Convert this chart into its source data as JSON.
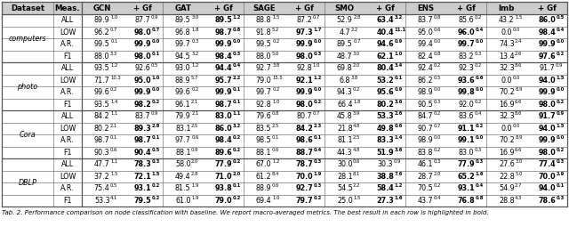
{
  "columns": [
    "Dataset",
    "Meas.",
    "GCN",
    "+ Gf",
    "GAT",
    "+ Gf",
    "SAGE",
    "+ Gf",
    "SMO",
    "+ Gf",
    "ENS",
    "+ Gf",
    "Imb",
    "+ Gf"
  ],
  "datasets": [
    "computers",
    "photo",
    "Cora",
    "DBLP"
  ],
  "measures": [
    "ALL",
    "LOW",
    "A.R.",
    "F1"
  ],
  "data": {
    "computers": {
      "ALL": [
        [
          "89.9",
          "1.0"
        ],
        [
          "87.7",
          "0.9"
        ],
        [
          "89.5",
          "3.0"
        ],
        [
          "89.5",
          "1.2"
        ],
        [
          "88.8",
          "1.5"
        ],
        [
          "87.2",
          "0.7"
        ],
        [
          "52.9",
          "2.8"
        ],
        [
          "63.4",
          "3.2"
        ],
        [
          "83.7",
          "0.8"
        ],
        [
          "85.6",
          "0.2"
        ],
        [
          "43.2",
          "1.5"
        ],
        [
          "86.0",
          "0.5"
        ]
      ],
      "LOW": [
        [
          "96.2",
          "0.7"
        ],
        [
          "98.0",
          "0.7"
        ],
        [
          "96.8",
          "1.8"
        ],
        [
          "98.7",
          "0.8"
        ],
        [
          "91.8",
          "5.2"
        ],
        [
          "97.3",
          "1.7"
        ],
        [
          "4.7",
          "2.2"
        ],
        [
          "40.4",
          "11.1"
        ],
        [
          "95.0",
          "0.6"
        ],
        [
          "96.0",
          "0.4"
        ],
        [
          "0.0",
          "0.0"
        ],
        [
          "98.4",
          "0.4"
        ]
      ],
      "A.R.": [
        [
          "99.5",
          "0.1"
        ],
        [
          "99.9",
          "0.0"
        ],
        [
          "99.7",
          "0.3"
        ],
        [
          "99.9",
          "0.0"
        ],
        [
          "99.5",
          "0.2"
        ],
        [
          "99.9",
          "0.0"
        ],
        [
          "89.5",
          "0.7"
        ],
        [
          "94.6",
          "0.9"
        ],
        [
          "99.4",
          "0.0"
        ],
        [
          "99.7",
          "0.0"
        ],
        [
          "74.3",
          "2.4"
        ],
        [
          "99.9",
          "0.0"
        ]
      ],
      "F1": [
        [
          "88.0",
          "3.3"
        ],
        [
          "98.0",
          "0.1"
        ],
        [
          "94.5",
          "3.2"
        ],
        [
          "98.4",
          "0.3"
        ],
        [
          "88.0",
          "5.0"
        ],
        [
          "98.0",
          "0.3"
        ],
        [
          "48.7",
          "3.0"
        ],
        [
          "62.1",
          "1.0"
        ],
        [
          "82.4",
          "0.8"
        ],
        [
          "83.2",
          "0.3"
        ],
        [
          "13.4",
          "2.6"
        ],
        [
          "97.6",
          "0.2"
        ]
      ]
    },
    "photo": {
      "ALL": [
        [
          "93.5",
          "1.2"
        ],
        [
          "92.6",
          "0.5"
        ],
        [
          "93.0",
          "1.2"
        ],
        [
          "94.4",
          "0.4"
        ],
        [
          "92.7",
          "3.8"
        ],
        [
          "92.8",
          "1.0"
        ],
        [
          "69.8",
          "2.0"
        ],
        [
          "80.4",
          "3.4"
        ],
        [
          "92.4",
          "0.2"
        ],
        [
          "92.3",
          "0.2"
        ],
        [
          "32.3",
          "8.6"
        ],
        [
          "91.7",
          "0.9"
        ]
      ],
      "LOW": [
        [
          "71.7",
          "10.3"
        ],
        [
          "95.0",
          "1.0"
        ],
        [
          "88.9",
          "5.7"
        ],
        [
          "95.7",
          "2.2"
        ],
        [
          "79.0",
          "15.5"
        ],
        [
          "92.1",
          "1.2"
        ],
        [
          "6.8",
          "3.8"
        ],
        [
          "53.2",
          "0.1"
        ],
        [
          "86.2",
          "0.5"
        ],
        [
          "93.6",
          "0.6"
        ],
        [
          "0.0",
          "0.0"
        ],
        [
          "94.0",
          "1.5"
        ]
      ],
      "A.R.": [
        [
          "99.6",
          "0.2"
        ],
        [
          "99.9",
          "0.0"
        ],
        [
          "99.6",
          "0.2"
        ],
        [
          "99.9",
          "0.1"
        ],
        [
          "99.7",
          "0.2"
        ],
        [
          "99.9",
          "0.0"
        ],
        [
          "94.3",
          "0.2"
        ],
        [
          "95.6",
          "0.9"
        ],
        [
          "98.9",
          "0.0"
        ],
        [
          "99.8",
          "0.0"
        ],
        [
          "70.2",
          "8.9"
        ],
        [
          "99.9",
          "0.0"
        ]
      ],
      "F1": [
        [
          "93.5",
          "1.4"
        ],
        [
          "98.2",
          "0.2"
        ],
        [
          "96.1",
          "2.1"
        ],
        [
          "98.7",
          "0.1"
        ],
        [
          "92.8",
          "1.0"
        ],
        [
          "98.0",
          "0.2"
        ],
        [
          "66.4",
          "1.8"
        ],
        [
          "80.2",
          "3.6"
        ],
        [
          "90.5",
          "0.3"
        ],
        [
          "92.0",
          "0.2"
        ],
        [
          "16.9",
          "6.6"
        ],
        [
          "98.0",
          "0.2"
        ]
      ]
    },
    "Cora": {
      "ALL": [
        [
          "84.2",
          "1.1"
        ],
        [
          "83.7",
          "0.9"
        ],
        [
          "79.9",
          "2.1"
        ],
        [
          "83.0",
          "1.1"
        ],
        [
          "79.6",
          "0.8"
        ],
        [
          "80.7",
          "0.7"
        ],
        [
          "45.8",
          "3.9"
        ],
        [
          "53.3",
          "2.6"
        ],
        [
          "84.7",
          "0.2"
        ],
        [
          "83.6",
          "0.4"
        ],
        [
          "32.3",
          "8.6"
        ],
        [
          "91.7",
          "0.9"
        ]
      ],
      "LOW": [
        [
          "80.2",
          "2.1"
        ],
        [
          "89.3",
          "2.8"
        ],
        [
          "83.1",
          "2.5"
        ],
        [
          "86.0",
          "3.2"
        ],
        [
          "83.5",
          "2.5"
        ],
        [
          "84.2",
          "2.3"
        ],
        [
          "21.8",
          "4.8"
        ],
        [
          "49.8",
          "0.6"
        ],
        [
          "90.7",
          "0.7"
        ],
        [
          "91.1",
          "0.2"
        ],
        [
          "0.0",
          "0.0"
        ],
        [
          "94.0",
          "1.5"
        ]
      ],
      "A.R.": [
        [
          "98.7",
          "0.1"
        ],
        [
          "98.7",
          "0.1"
        ],
        [
          "97.7",
          "0.6"
        ],
        [
          "98.4",
          "0.2"
        ],
        [
          "98.5",
          "0.1"
        ],
        [
          "98.6",
          "0.1"
        ],
        [
          "81.1",
          "2.5"
        ],
        [
          "83.3",
          "1.4"
        ],
        [
          "98.9",
          "0.0"
        ],
        [
          "99.1",
          "0.0"
        ],
        [
          "70.2",
          "8.9"
        ],
        [
          "99.9",
          "0.0"
        ]
      ],
      "F1": [
        [
          "90.3",
          "0.6"
        ],
        [
          "90.4",
          "0.5"
        ],
        [
          "88.1",
          "0.9"
        ],
        [
          "89.6",
          "0.2"
        ],
        [
          "88.1",
          "0.6"
        ],
        [
          "88.7",
          "0.4"
        ],
        [
          "44.3",
          "4.8"
        ],
        [
          "51.9",
          "3.6"
        ],
        [
          "83.8",
          "0.2"
        ],
        [
          "83.0",
          "0.3"
        ],
        [
          "16.9",
          "6.6"
        ],
        [
          "98.0",
          "0.2"
        ]
      ]
    },
    "DBLP": {
      "ALL": [
        [
          "47.7",
          "1.1"
        ],
        [
          "78.3",
          "0.3"
        ],
        [
          "58.0",
          "2.0"
        ],
        [
          "77.9",
          "0.2"
        ],
        [
          "67.0",
          "1.2"
        ],
        [
          "78.7",
          "0.3"
        ],
        [
          "30.0",
          "0.6"
        ],
        [
          "30.3",
          "0.9"
        ],
        [
          "46.1",
          "0.3"
        ],
        [
          "77.9",
          "0.3"
        ],
        [
          "27.6",
          "3.0"
        ],
        [
          "77.4",
          "0.3"
        ]
      ],
      "LOW": [
        [
          "37.2",
          "1.5"
        ],
        [
          "72.1",
          "1.5"
        ],
        [
          "49.4",
          "2.8"
        ],
        [
          "71.0",
          "2.0"
        ],
        [
          "61.2",
          "8.4"
        ],
        [
          "70.0",
          "1.9"
        ],
        [
          "28.1",
          "8.1"
        ],
        [
          "38.8",
          "7.6"
        ],
        [
          "28.7",
          "2.0"
        ],
        [
          "65.2",
          "1.6"
        ],
        [
          "22.8",
          "5.0"
        ],
        [
          "70.0",
          "2.9"
        ]
      ],
      "A.R.": [
        [
          "75.4",
          "0.5"
        ],
        [
          "93.1",
          "0.2"
        ],
        [
          "81.5",
          "1.9"
        ],
        [
          "93.8",
          "0.1"
        ],
        [
          "88.9",
          "0.6"
        ],
        [
          "92.7",
          "0.3"
        ],
        [
          "54.5",
          "2.2"
        ],
        [
          "58.4",
          "1.2"
        ],
        [
          "70.5",
          "0.2"
        ],
        [
          "93.1",
          "0.4"
        ],
        [
          "54.9",
          "2.7"
        ],
        [
          "94.0",
          "0.1"
        ]
      ],
      "F1": [
        [
          "53.3",
          "4.1"
        ],
        [
          "79.5",
          "0.2"
        ],
        [
          "61.0",
          "1.9"
        ],
        [
          "79.0",
          "0.2"
        ],
        [
          "69.4",
          "1.0"
        ],
        [
          "79.7",
          "0.2"
        ],
        [
          "25.0",
          "1.5"
        ],
        [
          "27.3",
          "1.6"
        ],
        [
          "43.7",
          "0.4"
        ],
        [
          "76.8",
          "0.8"
        ],
        [
          "28.8",
          "4.3"
        ],
        [
          "78.6",
          "0.3"
        ]
      ]
    }
  },
  "bold": {
    "computers": {
      "ALL": [
        false,
        false,
        false,
        true,
        false,
        false,
        false,
        true,
        false,
        false,
        false,
        true
      ],
      "LOW": [
        false,
        true,
        false,
        true,
        false,
        true,
        false,
        true,
        false,
        true,
        false,
        true
      ],
      "A.R.": [
        false,
        true,
        false,
        true,
        false,
        true,
        false,
        true,
        false,
        true,
        false,
        true
      ],
      "F1": [
        false,
        true,
        false,
        true,
        false,
        true,
        false,
        true,
        false,
        false,
        false,
        true
      ]
    },
    "photo": {
      "ALL": [
        false,
        false,
        false,
        true,
        false,
        false,
        false,
        true,
        false,
        false,
        false,
        false
      ],
      "LOW": [
        false,
        true,
        false,
        true,
        false,
        true,
        false,
        true,
        false,
        true,
        false,
        true
      ],
      "A.R.": [
        false,
        true,
        false,
        true,
        false,
        true,
        false,
        true,
        false,
        true,
        false,
        true
      ],
      "F1": [
        false,
        true,
        false,
        true,
        false,
        true,
        false,
        true,
        false,
        false,
        false,
        true
      ]
    },
    "Cora": {
      "ALL": [
        false,
        false,
        false,
        true,
        false,
        false,
        false,
        true,
        false,
        false,
        false,
        true
      ],
      "LOW": [
        false,
        true,
        false,
        true,
        false,
        true,
        false,
        true,
        false,
        true,
        false,
        true
      ],
      "A.R.": [
        false,
        true,
        false,
        true,
        false,
        true,
        false,
        true,
        false,
        true,
        false,
        true
      ],
      "F1": [
        false,
        true,
        false,
        true,
        false,
        true,
        false,
        true,
        false,
        false,
        false,
        true
      ]
    },
    "DBLP": {
      "ALL": [
        false,
        true,
        false,
        true,
        false,
        true,
        false,
        false,
        false,
        true,
        false,
        true
      ],
      "LOW": [
        false,
        true,
        false,
        true,
        false,
        true,
        false,
        true,
        false,
        true,
        false,
        true
      ],
      "A.R.": [
        false,
        true,
        false,
        true,
        false,
        true,
        false,
        true,
        false,
        true,
        false,
        true
      ],
      "F1": [
        false,
        true,
        false,
        true,
        false,
        true,
        false,
        true,
        false,
        true,
        false,
        true
      ]
    }
  },
  "caption": "Tab. 2. Performance comparison on node classification with baseline. We report macro-averaged metrics. The best result in each row is highlighted in bold.",
  "font_size": 5.8,
  "header_font_size": 6.2,
  "sup_font_size": 3.8,
  "caption_font_size": 5.0
}
